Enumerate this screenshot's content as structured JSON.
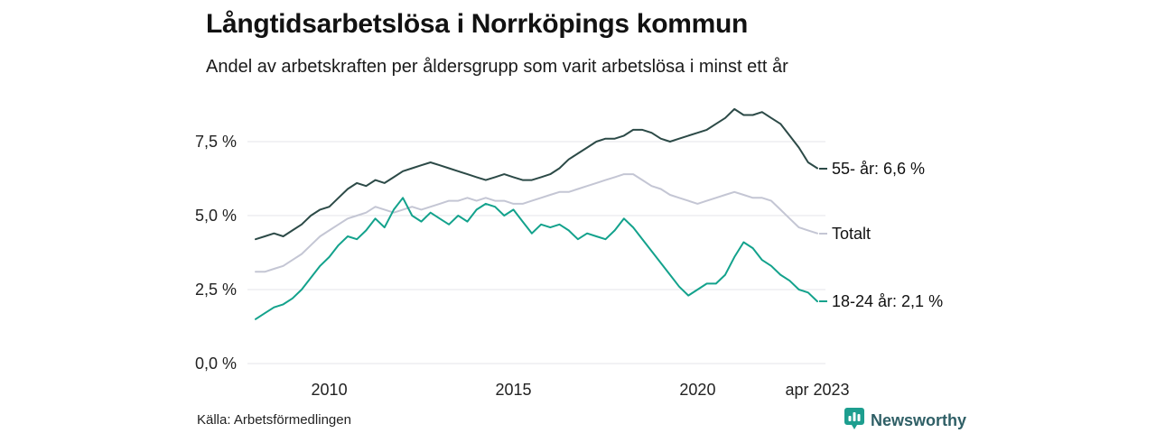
{
  "header": {
    "title": "Långtidsarbetslösa i Norrköpings kommun",
    "subtitle": "Andel av arbetskraften per åldersgrupp som varit arbetslösa i minst ett år"
  },
  "footer": {
    "source": "Källa: Arbetsförmedlingen",
    "brand": "Newsworthy",
    "brand_icon": "newsworthy-pin-bar-chart-icon",
    "brand_color": "#2f5f66",
    "brand_icon_color": "#1d9e8f"
  },
  "chart_data": {
    "type": "line",
    "title": "Långtidsarbetslösa i Norrköpings kommun",
    "subtitle": "Andel av arbetskraften per åldersgrupp som varit arbetslösa i minst ett år",
    "unit": "%",
    "xlabel": "",
    "ylabel": "",
    "grid": "horizontal",
    "grid_color": "#e4e4e8",
    "legend_position": "right-end-labels",
    "x_range": [
      2008.0,
      2023.25
    ],
    "ylim": [
      0,
      9.2
    ],
    "yticks": [
      {
        "value": 7.5,
        "label": "7,5 %"
      },
      {
        "value": 5.0,
        "label": "5,0 %"
      },
      {
        "value": 2.5,
        "label": "2,5 %"
      },
      {
        "value": 0.0,
        "label": "0,0 %"
      }
    ],
    "xticks": [
      {
        "value": 2010,
        "label": "2010"
      },
      {
        "value": 2015,
        "label": "2015"
      },
      {
        "value": 2020,
        "label": "2020"
      },
      {
        "value": 2023.25,
        "label": "apr 2023"
      }
    ],
    "x": [
      2008,
      2008.25,
      2008.5,
      2008.75,
      2009,
      2009.25,
      2009.5,
      2009.75,
      2010,
      2010.25,
      2010.5,
      2010.75,
      2011,
      2011.25,
      2011.5,
      2011.75,
      2012,
      2012.25,
      2012.5,
      2012.75,
      2013,
      2013.25,
      2013.5,
      2013.75,
      2014,
      2014.25,
      2014.5,
      2014.75,
      2015,
      2015.25,
      2015.5,
      2015.75,
      2016,
      2016.25,
      2016.5,
      2016.75,
      2017,
      2017.25,
      2017.5,
      2017.75,
      2018,
      2018.25,
      2018.5,
      2018.75,
      2019,
      2019.25,
      2019.5,
      2019.75,
      2020,
      2020.25,
      2020.5,
      2020.75,
      2021,
      2021.25,
      2021.5,
      2021.75,
      2022,
      2022.25,
      2022.5,
      2022.75,
      2023,
      2023.25
    ],
    "series": [
      {
        "name": "55- år",
        "end_label": "55- år: 6,6 %",
        "latest_value": 6.6,
        "color": "#2c4a47",
        "values": [
          4.2,
          4.3,
          4.4,
          4.3,
          4.5,
          4.7,
          5.0,
          5.2,
          5.3,
          5.6,
          5.9,
          6.1,
          6.0,
          6.2,
          6.1,
          6.3,
          6.5,
          6.6,
          6.7,
          6.8,
          6.7,
          6.6,
          6.5,
          6.4,
          6.3,
          6.2,
          6.3,
          6.4,
          6.3,
          6.2,
          6.2,
          6.3,
          6.4,
          6.6,
          6.9,
          7.1,
          7.3,
          7.5,
          7.6,
          7.6,
          7.7,
          7.9,
          7.9,
          7.8,
          7.6,
          7.5,
          7.6,
          7.7,
          7.8,
          7.9,
          8.1,
          8.3,
          8.6,
          8.4,
          8.4,
          8.5,
          8.3,
          8.1,
          7.7,
          7.3,
          6.8,
          6.6
        ]
      },
      {
        "name": "Totalt",
        "end_label": "Totalt",
        "latest_value": 4.4,
        "color": "#c4c6d4",
        "values": [
          3.1,
          3.1,
          3.2,
          3.3,
          3.5,
          3.7,
          4.0,
          4.3,
          4.5,
          4.7,
          4.9,
          5.0,
          5.1,
          5.3,
          5.2,
          5.1,
          5.2,
          5.3,
          5.2,
          5.3,
          5.4,
          5.5,
          5.5,
          5.6,
          5.5,
          5.6,
          5.5,
          5.5,
          5.4,
          5.4,
          5.5,
          5.6,
          5.7,
          5.8,
          5.8,
          5.9,
          6.0,
          6.1,
          6.2,
          6.3,
          6.4,
          6.4,
          6.2,
          6.0,
          5.9,
          5.7,
          5.6,
          5.5,
          5.4,
          5.5,
          5.6,
          5.7,
          5.8,
          5.7,
          5.6,
          5.6,
          5.5,
          5.2,
          4.9,
          4.6,
          4.5,
          4.4
        ]
      },
      {
        "name": "18-24 år",
        "end_label": "18-24 år: 2,1 %",
        "latest_value": 2.1,
        "color": "#13a28c",
        "values": [
          1.5,
          1.7,
          1.9,
          2.0,
          2.2,
          2.5,
          2.9,
          3.3,
          3.6,
          4.0,
          4.3,
          4.2,
          4.5,
          4.9,
          4.6,
          5.2,
          5.6,
          5.0,
          4.8,
          5.1,
          4.9,
          4.7,
          5.0,
          4.8,
          5.2,
          5.4,
          5.3,
          5.0,
          5.2,
          4.8,
          4.4,
          4.7,
          4.6,
          4.7,
          4.5,
          4.2,
          4.4,
          4.3,
          4.2,
          4.5,
          4.9,
          4.6,
          4.2,
          3.8,
          3.4,
          3.0,
          2.6,
          2.3,
          2.5,
          2.7,
          2.7,
          3.0,
          3.6,
          4.1,
          3.9,
          3.5,
          3.3,
          3.0,
          2.8,
          2.5,
          2.4,
          2.1
        ]
      }
    ]
  }
}
